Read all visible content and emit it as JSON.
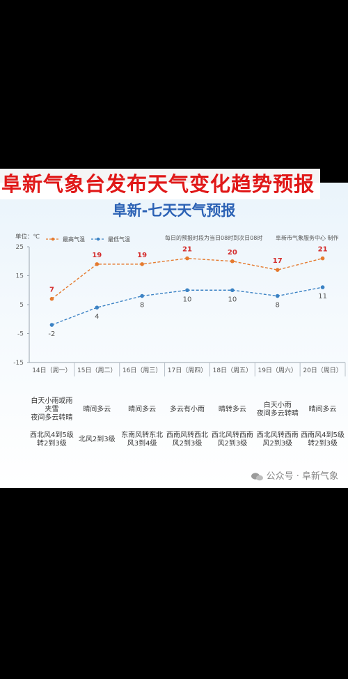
{
  "banner": {
    "title": "阜新气象台发布天气变化趋势预报"
  },
  "subtitle": "阜新-七天天气预报",
  "footer": {
    "account": "公众号 · 阜新气象"
  },
  "colors": {
    "high": "#e57a2e",
    "low": "#3b82c4",
    "high_label": "#d42c2c",
    "low_label": "#555555",
    "title_blue": "#2c62b5",
    "banner_red": "#e01818"
  },
  "chart_data": {
    "type": "line",
    "unit_label": "单位：℃",
    "notes": [
      "每日的预报时段为当日08时到次日08时",
      "阜新市气象服务中心 制作"
    ],
    "categories": [
      "14日（周一）",
      "15日（周二）",
      "16日（周三）",
      "17日（周四）",
      "18日（周五）",
      "19日（周六）",
      "20日（周日）"
    ],
    "series": [
      {
        "name": "最高气温",
        "values": [
          7,
          19,
          19,
          21,
          20,
          17,
          21
        ]
      },
      {
        "name": "最低气温",
        "values": [
          -2,
          4,
          8,
          10,
          10,
          8,
          11
        ]
      }
    ],
    "yticks": [
      25,
      15,
      5,
      -5,
      -15
    ],
    "ylim": [
      -15,
      25
    ],
    "legend": "top-left",
    "grid": false
  },
  "weather": [
    "白天小雨或雨\n夹雪\n夜间多云转晴",
    "晴间多云",
    "晴间多云",
    "多云有小雨",
    "晴转多云",
    "白天小雨\n夜间多云转晴",
    "晴间多云"
  ],
  "wind": [
    "西北风4到5级\n转2到3级",
    "北风2到3级",
    "东南风转东北\n风3到4级",
    "西南风转西北\n风2到3级",
    "西北风转西南\n风2到3级",
    "西北风转西南\n风2到3级",
    "西南风4到5级\n转2到3级"
  ]
}
